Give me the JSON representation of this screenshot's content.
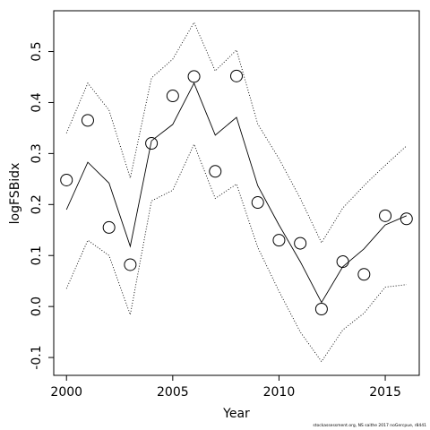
{
  "footnote": "stockassessment.org, NS saithe 2017 noGercpue, r8441",
  "chart_data": {
    "type": "line",
    "title": "",
    "xlabel": "Year",
    "ylabel": "logFSBidx",
    "xlim": [
      1999.4,
      2016.6
    ],
    "ylim": [
      -0.135,
      0.58
    ],
    "xticks": [
      2000,
      2005,
      2010,
      2015
    ],
    "yticks": [
      -0.1,
      0.0,
      0.1,
      0.2,
      0.3,
      0.4,
      0.5
    ],
    "grid": false,
    "legend": "none",
    "x": [
      2000,
      2001,
      2002,
      2003,
      2004,
      2005,
      2006,
      2007,
      2008,
      2009,
      2010,
      2011,
      2012,
      2013,
      2014,
      2015,
      2016
    ],
    "series": [
      {
        "role": "observed",
        "style": "open-circle",
        "values": [
          0.248,
          0.365,
          0.155,
          0.082,
          0.32,
          0.413,
          0.451,
          0.265,
          0.452,
          0.204,
          0.13,
          0.124,
          -0.005,
          0.088,
          0.063,
          0.178,
          0.172
        ]
      },
      {
        "role": "fitted",
        "style": "solid",
        "values": [
          0.19,
          0.283,
          0.242,
          0.118,
          0.325,
          0.357,
          0.438,
          0.336,
          0.371,
          0.237,
          0.16,
          0.088,
          0.008,
          0.078,
          0.113,
          0.16,
          0.178
        ]
      },
      {
        "role": "upper-bound",
        "style": "dotted",
        "values": [
          0.34,
          0.438,
          0.385,
          0.252,
          0.448,
          0.485,
          0.557,
          0.462,
          0.503,
          0.358,
          0.29,
          0.212,
          0.125,
          0.193,
          0.237,
          0.277,
          0.315
        ]
      },
      {
        "role": "lower-bound",
        "style": "dotted",
        "values": [
          0.035,
          0.13,
          0.1,
          -0.016,
          0.207,
          0.228,
          0.318,
          0.212,
          0.24,
          0.116,
          0.03,
          -0.05,
          -0.108,
          -0.046,
          -0.013,
          0.038,
          0.043
        ]
      }
    ]
  }
}
